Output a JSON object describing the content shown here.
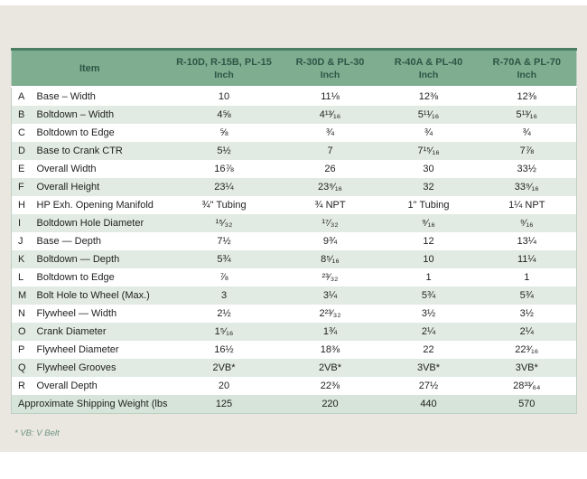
{
  "colors": {
    "page_bg": "#eae7e0",
    "header_bg": "#7ead90",
    "header_top_bar": "#4b7f63",
    "header_text": "#2f5646",
    "row_alt": "#e1ebe3",
    "weight_row": "#d6e4d9",
    "table_border": "#bccfc1",
    "text": "#1f1f1f",
    "footnote": "#6f9581"
  },
  "table": {
    "header": {
      "item_label": "Item",
      "columns": [
        {
          "models": "R-10D, R-15B, PL-15",
          "unit": "Inch"
        },
        {
          "models": "R-30D & PL-30",
          "unit": "Inch"
        },
        {
          "models": "R-40A & PL-40",
          "unit": "Inch"
        },
        {
          "models": "R-70A & PL-70",
          "unit": "Inch"
        }
      ]
    },
    "rows": [
      {
        "letter": "A",
        "item": "Base – Width",
        "values": [
          "10",
          "11⅛",
          "12⅜",
          "12⅜"
        ]
      },
      {
        "letter": "B",
        "item": "Boltdown – Width",
        "values": [
          "4⅝",
          "4¹³⁄₁₆",
          "5¹¹⁄₁₆",
          "5¹³⁄₁₆"
        ]
      },
      {
        "letter": "C",
        "item": "Boltdown to Edge",
        "values": [
          "⅝",
          "¾",
          "¾",
          "¾"
        ]
      },
      {
        "letter": "D",
        "item": "Base to Crank CTR",
        "values": [
          "5½",
          "7",
          "7¹⁵⁄₁₆",
          "7⅞"
        ]
      },
      {
        "letter": "E",
        "item": "Overall Width",
        "values": [
          "16⅞",
          "26",
          "30",
          "33½"
        ]
      },
      {
        "letter": "F",
        "item": "Overall Height",
        "values": [
          "23¼",
          "23⁹⁄₁₆",
          "32",
          "33⁹⁄₁₆"
        ]
      },
      {
        "letter": "H",
        "item": "HP Exh. Opening Manifold",
        "values": [
          "¾\" Tubing",
          "¾ NPT",
          "1\" Tubing",
          "1¼ NPT"
        ]
      },
      {
        "letter": "I",
        "item": "Boltdown Hole Diameter",
        "values": [
          "¹⁵⁄₃₂",
          "¹⁷⁄₃₂",
          "⁹⁄₁₆",
          "⁹⁄₁₆"
        ]
      },
      {
        "letter": "J",
        "item": "Base — Depth",
        "values": [
          "7½",
          "9¾",
          "12",
          "13¼"
        ]
      },
      {
        "letter": "K",
        "item": "Boltdown — Depth",
        "values": [
          "5¾",
          "8⁵⁄₁₆",
          "10",
          "11¼"
        ]
      },
      {
        "letter": "L",
        "item": "Boltdown to Edge",
        "values": [
          "⅞",
          "²³⁄₃₂",
          "1",
          "1"
        ]
      },
      {
        "letter": "M",
        "item": "Bolt Hole to Wheel (Max.)",
        "values": [
          "3",
          "3¼",
          "5¾",
          "5¾"
        ]
      },
      {
        "letter": "N",
        "item": "Flywheel — Width",
        "values": [
          "2½",
          "2²³⁄₃₂",
          "3½",
          "3½"
        ]
      },
      {
        "letter": "O",
        "item": "Crank Diameter",
        "values": [
          "1⁵⁄₁₆",
          "1¾",
          "2¼",
          "2¼"
        ]
      },
      {
        "letter": "P",
        "item": "Flywheel Diameter",
        "values": [
          "16½",
          "18⅜",
          "22",
          "22³⁄₁₆"
        ]
      },
      {
        "letter": "Q",
        "item": "Flywheel Grooves",
        "values": [
          "2VB*",
          "2VB*",
          "3VB*",
          "3VB*"
        ]
      },
      {
        "letter": "R",
        "item": "Overall Depth",
        "values": [
          "20",
          "22⅜",
          "27½",
          "28³³⁄₆₄"
        ]
      },
      {
        "letter": "",
        "item": "Approximate Shipping Weight (lbs.)",
        "values": [
          "125",
          "220",
          "440",
          "570"
        ]
      }
    ],
    "footnote": "* VB: V Belt"
  }
}
